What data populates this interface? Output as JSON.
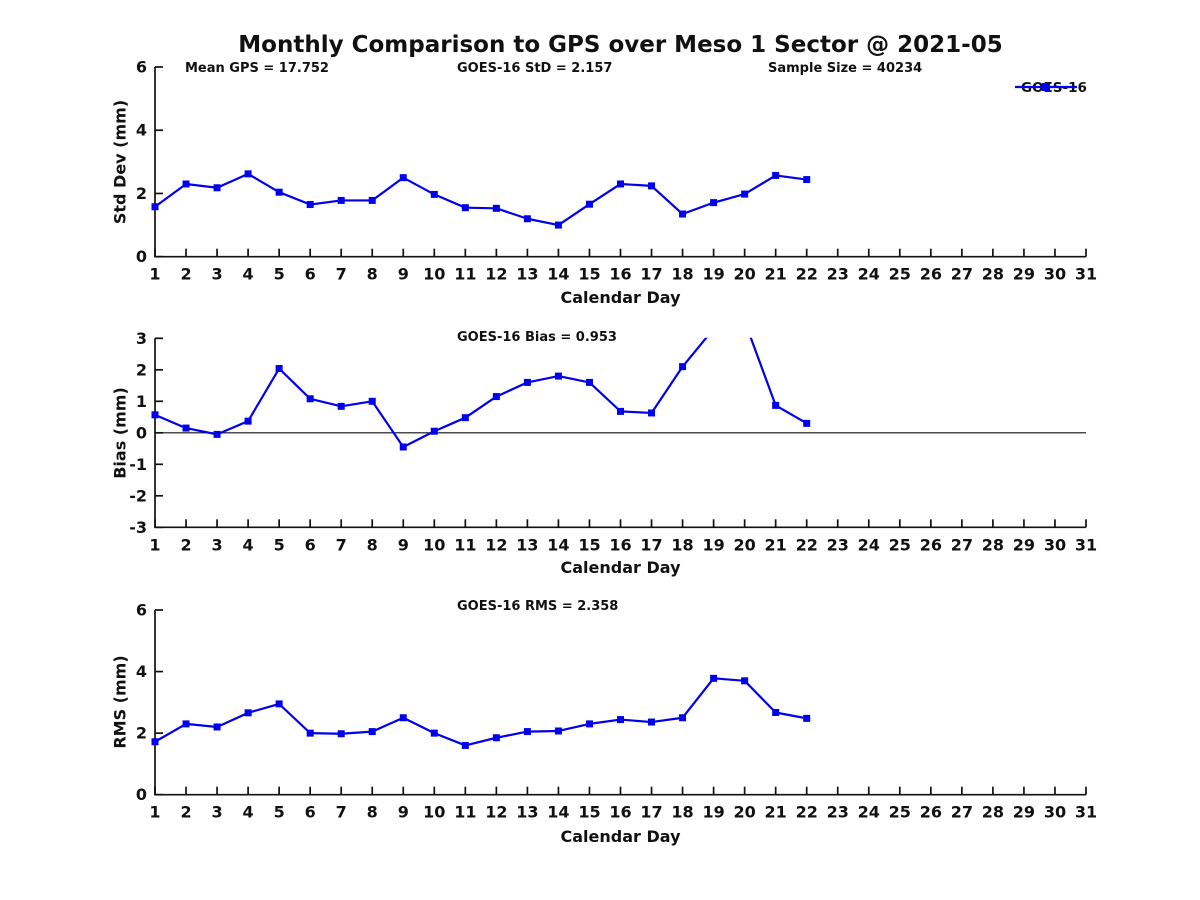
{
  "title": "Monthly Comparison to GPS over Meso 1 Sector @ 2021-05",
  "legend": {
    "series_label": "GOES-16"
  },
  "colors": {
    "line": "#0000EE",
    "axis": "#111111",
    "text": "#111111",
    "background": "#FFFFFF"
  },
  "stats": {
    "mean_gps": 17.752,
    "goes16_std": 2.157,
    "sample_size": 40234,
    "goes16_bias": 0.953,
    "goes16_rms": 2.358
  },
  "chart_data": [
    {
      "type": "line",
      "panel": "std_dev",
      "annotations": [
        "Mean GPS = 17.752",
        "GOES-16 StD = 2.157",
        "Sample Size = 40234"
      ],
      "ylabel": "Std Dev (mm)",
      "xlabel": "Calendar Day",
      "ylim": [
        0,
        6
      ],
      "yticks": [
        0,
        2,
        4,
        6
      ],
      "xlim": [
        1,
        31
      ],
      "xticks": [
        1,
        2,
        3,
        4,
        5,
        6,
        7,
        8,
        9,
        10,
        11,
        12,
        13,
        14,
        15,
        16,
        17,
        18,
        19,
        20,
        21,
        22,
        23,
        24,
        25,
        26,
        27,
        28,
        29,
        30,
        31
      ],
      "legend_entries": [
        "GOES-16"
      ],
      "x": [
        1,
        2,
        3,
        4,
        5,
        6,
        7,
        8,
        9,
        10,
        11,
        12,
        13,
        14,
        15,
        16,
        17,
        18,
        19,
        20,
        21,
        22
      ],
      "series": [
        {
          "name": "GOES-16",
          "values": [
            1.58,
            2.3,
            2.18,
            2.62,
            2.04,
            1.65,
            1.78,
            1.78,
            2.5,
            1.97,
            1.55,
            1.53,
            1.2,
            1.0,
            1.66,
            2.3,
            2.24,
            1.35,
            1.71,
            1.98,
            2.57,
            2.44
          ]
        }
      ]
    },
    {
      "type": "line",
      "panel": "bias",
      "annotations": [
        "GOES-16 Bias = 0.953"
      ],
      "ylabel": "Bias (mm)",
      "xlabel": "Calendar Day",
      "ylim": [
        -3,
        3
      ],
      "yticks": [
        -3,
        -2,
        -1,
        0,
        1,
        2,
        3
      ],
      "zero_line": true,
      "xlim": [
        1,
        31
      ],
      "xticks": [
        1,
        2,
        3,
        4,
        5,
        6,
        7,
        8,
        9,
        10,
        11,
        12,
        13,
        14,
        15,
        16,
        17,
        18,
        19,
        20,
        21,
        22,
        23,
        24,
        25,
        26,
        27,
        28,
        29,
        30,
        31
      ],
      "x": [
        1,
        2,
        3,
        4,
        5,
        6,
        7,
        8,
        9,
        10,
        11,
        12,
        13,
        14,
        15,
        16,
        17,
        18,
        19,
        20,
        21,
        22
      ],
      "clipped_above_ymax_days": [
        19,
        20
      ],
      "series": [
        {
          "name": "GOES-16",
          "values": [
            0.57,
            0.15,
            -0.05,
            0.37,
            2.04,
            1.08,
            0.84,
            1.0,
            -0.45,
            0.05,
            0.48,
            1.15,
            1.6,
            1.8,
            1.6,
            0.68,
            0.63,
            2.1,
            3.3,
            3.55,
            0.87,
            0.3
          ]
        }
      ]
    },
    {
      "type": "line",
      "panel": "rms",
      "annotations": [
        "GOES-16 RMS = 2.358"
      ],
      "ylabel": "RMS (mm)",
      "xlabel": "Calendar Day",
      "ylim": [
        0,
        6
      ],
      "yticks": [
        0,
        2,
        4,
        6
      ],
      "xlim": [
        1,
        31
      ],
      "xticks": [
        1,
        2,
        3,
        4,
        5,
        6,
        7,
        8,
        9,
        10,
        11,
        12,
        13,
        14,
        15,
        16,
        17,
        18,
        19,
        20,
        21,
        22,
        23,
        24,
        25,
        26,
        27,
        28,
        29,
        30,
        31
      ],
      "x": [
        1,
        2,
        3,
        4,
        5,
        6,
        7,
        8,
        9,
        10,
        11,
        12,
        13,
        14,
        15,
        16,
        17,
        18,
        19,
        20,
        21,
        22
      ],
      "series": [
        {
          "name": "GOES-16",
          "values": [
            1.72,
            2.3,
            2.2,
            2.66,
            2.95,
            2.0,
            1.98,
            2.05,
            2.5,
            2.0,
            1.6,
            1.85,
            2.05,
            2.07,
            2.3,
            2.44,
            2.36,
            2.5,
            3.78,
            3.7,
            2.67,
            2.48
          ]
        }
      ]
    }
  ]
}
